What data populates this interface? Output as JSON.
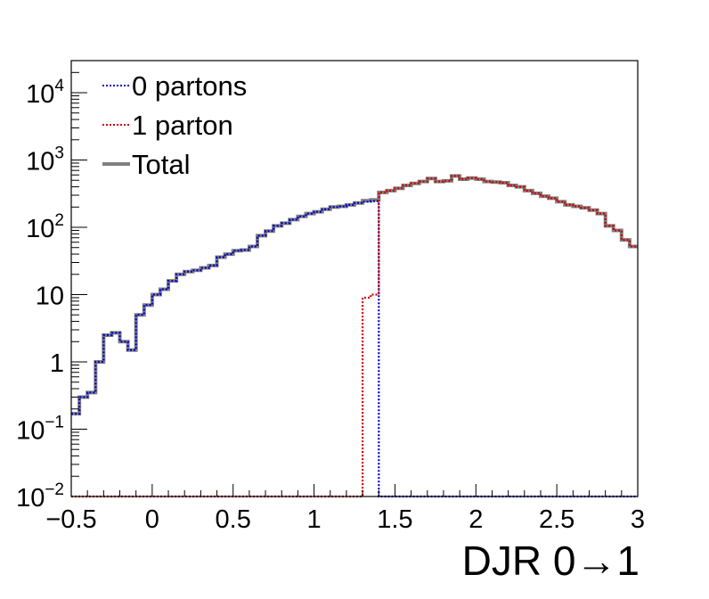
{
  "chart_data": {
    "type": "line",
    "title": "",
    "xlabel": "DJR 0→1",
    "ylabel": "",
    "xscale": "linear",
    "yscale": "log",
    "xlim": [
      -0.5,
      3.0
    ],
    "ylim": [
      0.01,
      30000
    ],
    "bin_width": 0.05,
    "x_ticks": [
      {
        "value": -0.5,
        "label": "−0.5"
      },
      {
        "value": 0,
        "label": "0"
      },
      {
        "value": 0.5,
        "label": "0.5"
      },
      {
        "value": 1,
        "label": "1"
      },
      {
        "value": 1.5,
        "label": "1.5"
      },
      {
        "value": 2,
        "label": "2"
      },
      {
        "value": 2.5,
        "label": "2.5"
      },
      {
        "value": 3,
        "label": "3"
      }
    ],
    "y_ticks": [
      {
        "value": 0.01,
        "base": "10",
        "exp": "−2"
      },
      {
        "value": 0.1,
        "base": "10",
        "exp": "−1"
      },
      {
        "value": 1,
        "base": "1",
        "exp": ""
      },
      {
        "value": 10,
        "base": "10",
        "exp": ""
      },
      {
        "value": 100,
        "base": "10",
        "exp": "2"
      },
      {
        "value": 1000,
        "base": "10",
        "exp": "3"
      },
      {
        "value": 10000,
        "base": "10",
        "exp": "4"
      }
    ],
    "legend": {
      "position": "top-left"
    },
    "series": [
      {
        "name": "0 partons",
        "color": "#0000cc",
        "style": "dotted",
        "bin_edges_start": -0.5,
        "values": [
          0.17,
          0.3,
          0.35,
          1.0,
          2.5,
          2.7,
          2.0,
          1.5,
          5.0,
          7.0,
          10.0,
          12.0,
          16.0,
          20.0,
          22.0,
          23.0,
          25.0,
          27.0,
          36.0,
          40.0,
          45.0,
          46.0,
          52.0,
          75.0,
          88.0,
          105.0,
          115.0,
          130.0,
          145.0,
          160.0,
          170.0,
          185.0,
          200.0,
          205.0,
          215.0,
          230.0,
          240.0,
          245.0,
          0.009,
          0.009,
          0.009,
          0.009,
          0.009,
          0.009,
          0.009,
          0.009,
          0.009,
          0.009,
          0.009,
          0.009,
          0.009,
          0.009,
          0.009,
          0.009,
          0.009,
          0.009,
          0.009,
          0.009,
          0.009,
          0.009,
          0.009,
          0.009,
          0.009,
          0.009,
          0.009,
          0.009,
          0.009,
          0.009,
          0.009,
          0.009
        ]
      },
      {
        "name": "1 parton",
        "color": "#cc0000",
        "style": "dotted",
        "bin_edges_start": -0.5,
        "values": [
          0.009,
          0.009,
          0.009,
          0.009,
          0.009,
          0.009,
          0.009,
          0.009,
          0.009,
          0.009,
          0.009,
          0.009,
          0.009,
          0.009,
          0.009,
          0.009,
          0.009,
          0.009,
          0.009,
          0.009,
          0.009,
          0.009,
          0.009,
          0.009,
          0.009,
          0.009,
          0.009,
          0.009,
          0.009,
          0.009,
          0.009,
          0.009,
          0.009,
          0.009,
          0.009,
          0.009,
          9.0,
          10.0,
          330.0,
          350.0,
          380.0,
          420.0,
          450.0,
          480.0,
          530.0,
          480.0,
          490.0,
          580.0,
          520.0,
          540.0,
          520.0,
          480.0,
          470.0,
          460.0,
          420.0,
          400.0,
          350.0,
          320.0,
          290.0,
          270.0,
          240.0,
          215.0,
          205.0,
          195.0,
          180.0,
          160.0,
          105.0,
          90.0,
          65.0,
          52.0
        ]
      },
      {
        "name": "Total",
        "color": "#808080",
        "style": "solid",
        "bin_edges_start": -0.5,
        "values": [
          0.17,
          0.3,
          0.35,
          1.0,
          2.5,
          2.7,
          2.0,
          1.5,
          5.0,
          7.0,
          10.0,
          12.0,
          16.0,
          20.0,
          22.0,
          23.0,
          25.0,
          27.0,
          36.0,
          40.0,
          45.0,
          46.0,
          52.0,
          75.0,
          88.0,
          105.0,
          115.0,
          130.0,
          145.0,
          160.0,
          170.0,
          185.0,
          200.0,
          205.0,
          215.0,
          230.0,
          249.0,
          255.0,
          330.0,
          350.0,
          380.0,
          420.0,
          450.0,
          480.0,
          530.0,
          480.0,
          490.0,
          580.0,
          520.0,
          540.0,
          520.0,
          480.0,
          470.0,
          460.0,
          420.0,
          400.0,
          350.0,
          320.0,
          290.0,
          270.0,
          240.0,
          215.0,
          205.0,
          195.0,
          180.0,
          160.0,
          105.0,
          90.0,
          65.0,
          52.0
        ]
      }
    ]
  }
}
